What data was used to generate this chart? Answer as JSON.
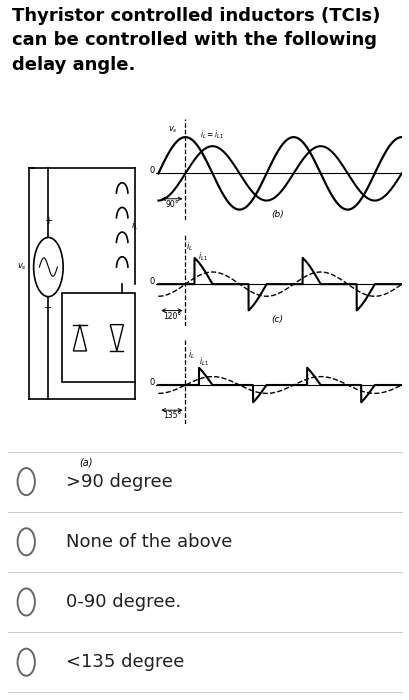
{
  "title": "Thyristor controlled inductors (TCIs)\ncan be controlled with the following\ndelay angle.",
  "options": [
    ">90 degree",
    "None of the above",
    "0-90 degree.",
    "<135 degree"
  ],
  "bg_color": "#ffffff",
  "text_color": "#000000",
  "option_color": "#222222",
  "divider_color": "#cccccc",
  "option_fontsize": 13,
  "title_fontsize": 13
}
